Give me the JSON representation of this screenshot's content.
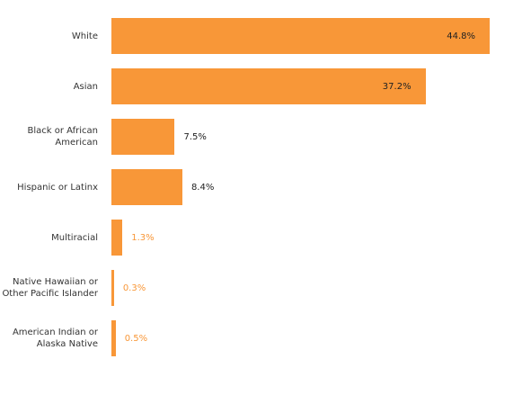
{
  "chart_data": {
    "type": "bar",
    "orientation": "horizontal",
    "categories": [
      "White",
      "Asian",
      "Black or African American",
      "Hispanic or Latinx",
      "Multiracial",
      "Native Hawaiian or Other Pacific Islander",
      "American Indian or Alaska Native"
    ],
    "values": [
      44.8,
      37.2,
      7.5,
      8.4,
      1.3,
      0.3,
      0.5
    ],
    "value_labels": [
      "44.8%",
      "37.2%",
      "7.5%",
      "8.4%",
      "1.3%",
      "0.3%",
      "0.5%"
    ],
    "color": "#f89738"
  }
}
